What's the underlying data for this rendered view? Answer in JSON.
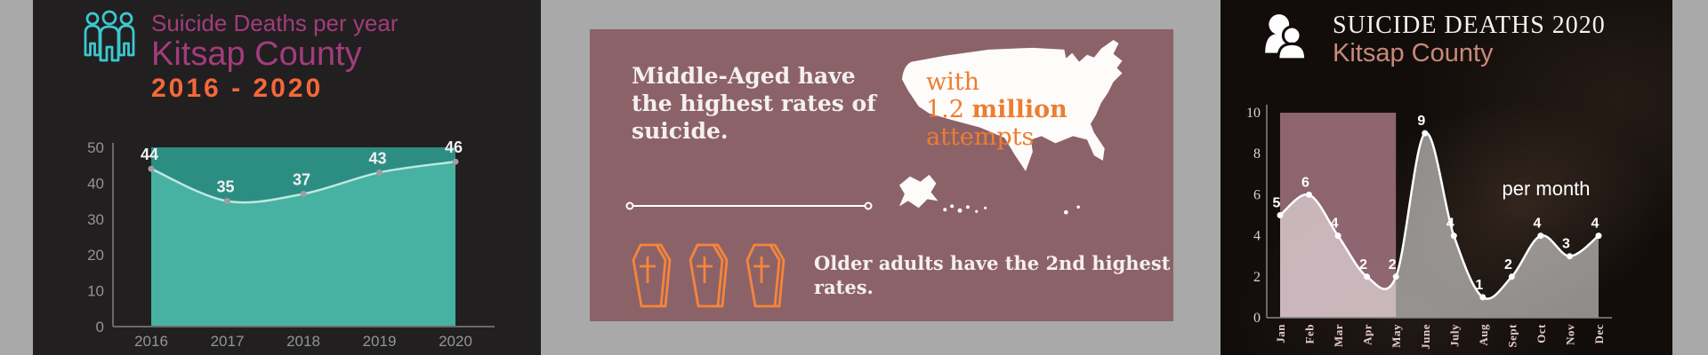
{
  "page": {
    "background": "#a9a9a9"
  },
  "left_panel": {
    "background": "#211f20",
    "icon": "people-group-icon",
    "icon_color": "#3cc8cf",
    "title_top": "Suicide Deaths per year",
    "title_main": "Kitsap County",
    "title_years": "2016 - 2020",
    "title_color": "#a33c7c",
    "years_color": "#f4683c"
  },
  "middle_panel": {
    "background": "#8c6269",
    "headline_lines": [
      "Middle-Aged have",
      "the highest rates of",
      "suicide."
    ],
    "map_icon": "usa-map-silhouette",
    "map_caption": {
      "line1": "with",
      "value": "1.2 ",
      "bold": "million",
      "line3": "attempts"
    },
    "caption_color": "#ee7d31",
    "coffin_count": 3,
    "secondary_lines": [
      "Older adults have the 2nd highest",
      "rates."
    ]
  },
  "right_panel": {
    "background": "#120d0b",
    "icon": "two-users-icon",
    "title_top": "SUICIDE DEATHS 2020",
    "title_main": "Kitsap County",
    "title_main_color": "#c8897a",
    "annotation": "per month"
  },
  "chart_data": [
    {
      "type": "area",
      "title": "Suicide Deaths per year, Kitsap County 2016 - 2020",
      "categories": [
        "2016",
        "2017",
        "2018",
        "2019",
        "2020"
      ],
      "values": [
        44,
        35,
        37,
        43,
        46
      ],
      "xlabel": "",
      "ylabel": "",
      "ylim": [
        0,
        50
      ],
      "yticks": [
        0,
        10,
        20,
        30,
        40,
        50
      ],
      "grid": false,
      "point_labels": true,
      "colors": {
        "band": "#2c8e82",
        "area": "#47b1a2",
        "line": "#bfe8df",
        "dot": "#9b9fa0",
        "axis": "#6a6a6a"
      }
    },
    {
      "type": "line",
      "title": "Suicide Deaths 2020, Kitsap County per month",
      "categories": [
        "Jan",
        "Feb",
        "Mar",
        "Apr",
        "May",
        "June",
        "July",
        "Aug",
        "Sept",
        "Oct",
        "Nov",
        "Dec"
      ],
      "values": [
        5,
        6,
        4,
        2,
        2,
        9,
        4,
        1,
        2,
        4,
        3,
        4
      ],
      "xlabel": "",
      "ylabel": "",
      "ylim": [
        0,
        10
      ],
      "yticks": [
        0,
        2,
        4,
        6,
        8,
        10
      ],
      "grid": false,
      "point_labels": true,
      "highlight_band": {
        "from": "Jan",
        "to": "May",
        "color": "rgba(163,116,131,0.85)"
      },
      "colors": {
        "area": "rgba(255,255,255,0.53)",
        "line": "#ffffff",
        "dot": "#ffffff",
        "axis": "#8a8683"
      }
    }
  ]
}
